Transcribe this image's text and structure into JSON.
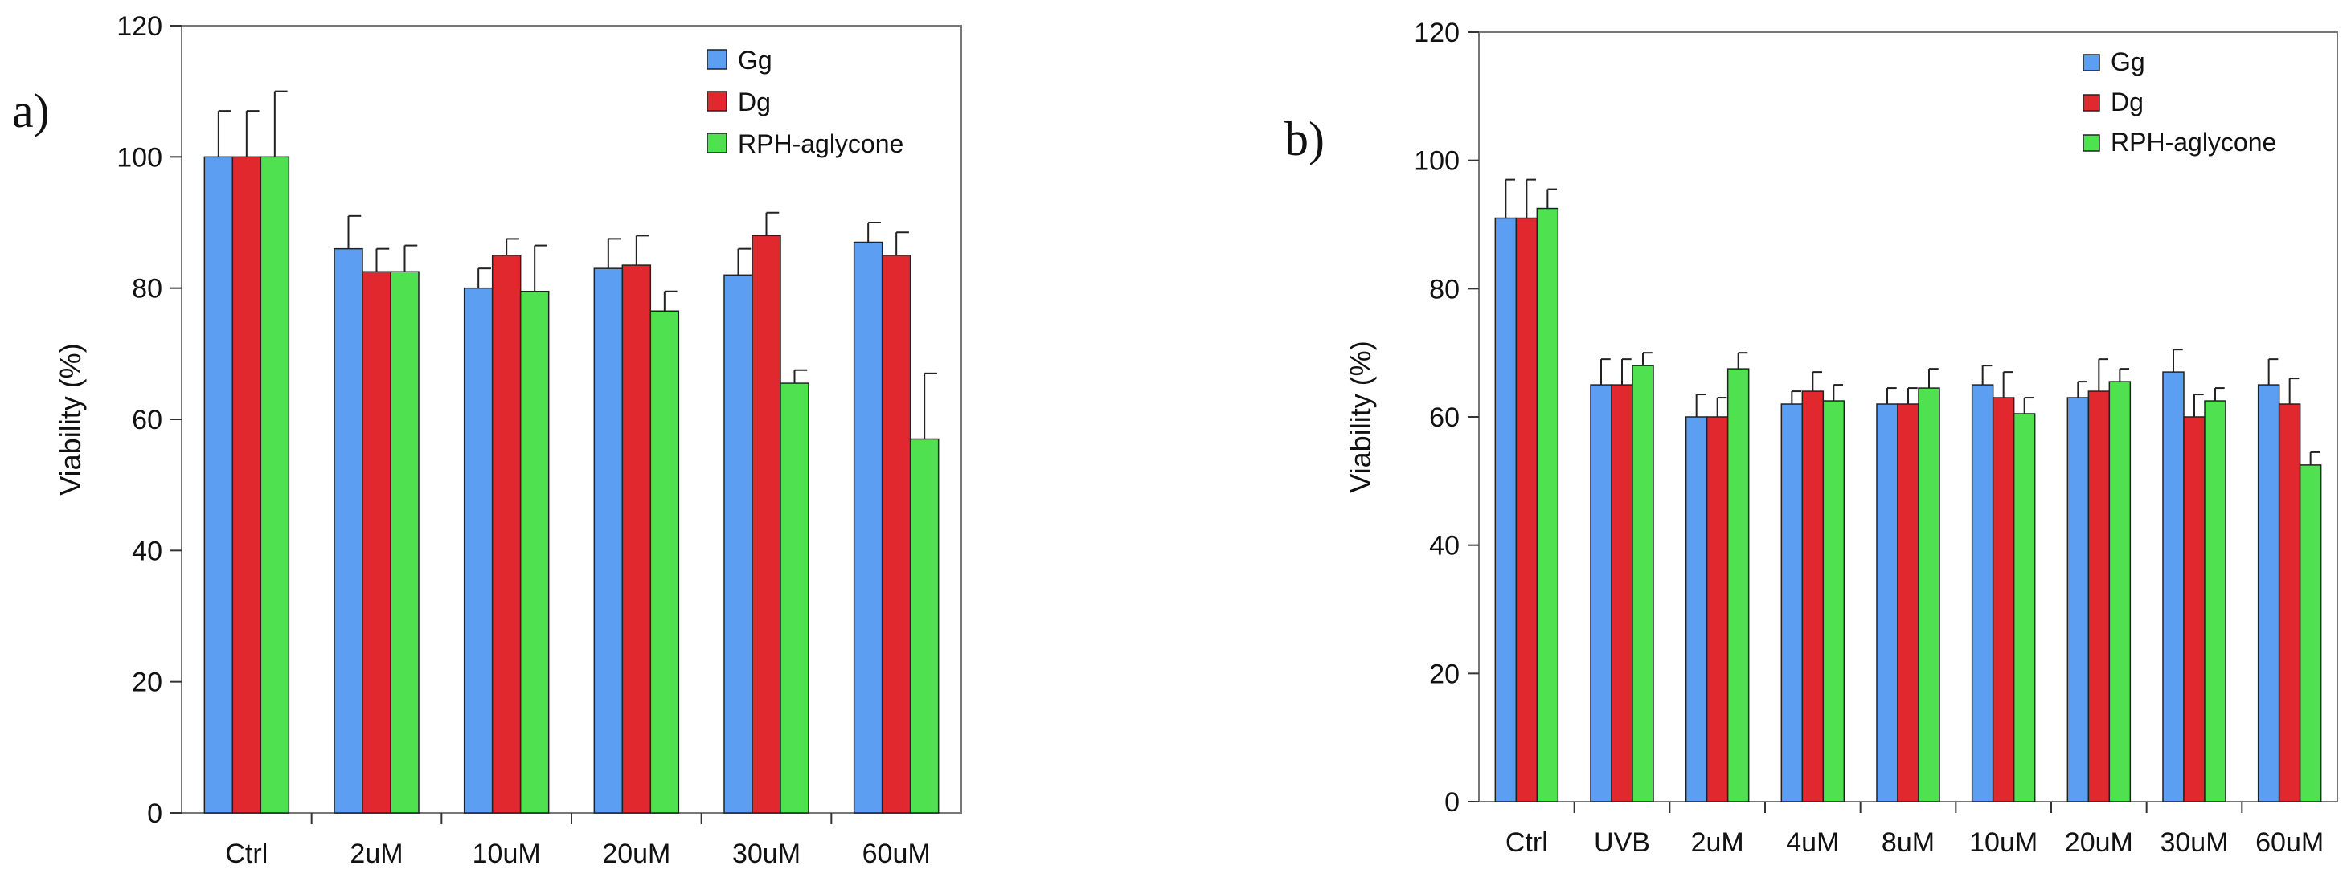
{
  "colors": {
    "Gg": "#5c9ef2",
    "Dg": "#e0282e",
    "RPH-aglycone": "#4fe150"
  },
  "chart_data": [
    {
      "panel_label": "a)",
      "type": "bar",
      "ylabel": "Viability (%)",
      "xlabel": "",
      "ylim": [
        0,
        120
      ],
      "yticks": [
        0,
        20,
        40,
        60,
        80,
        100,
        120
      ],
      "grid": false,
      "legend_position": "top-right",
      "categories": [
        "Ctrl",
        "2uM",
        "10uM",
        "20uM",
        "30uM",
        "60uM"
      ],
      "series": [
        {
          "name": "Gg",
          "values": [
            100,
            86,
            80,
            83,
            82,
            87
          ],
          "errors": [
            7,
            5,
            3,
            4.5,
            4,
            3
          ]
        },
        {
          "name": "Dg",
          "values": [
            100,
            82.5,
            85,
            83.5,
            88,
            85
          ],
          "errors": [
            7,
            3.5,
            2.5,
            4.5,
            3.5,
            3.5
          ]
        },
        {
          "name": "RPH-aglycone",
          "values": [
            100,
            82.5,
            79.5,
            76.5,
            65.5,
            57
          ],
          "errors": [
            10,
            4,
            7,
            3,
            2,
            10
          ]
        }
      ]
    },
    {
      "panel_label": "b)",
      "type": "bar",
      "ylabel": "Viability (%)",
      "xlabel": "",
      "ylim": [
        0,
        120
      ],
      "yticks": [
        0,
        20,
        40,
        60,
        80,
        100,
        120
      ],
      "grid": false,
      "legend_position": "top-right",
      "categories": [
        "Ctrl",
        "UVB",
        "2uM",
        "4uM",
        "8uM",
        "10uM",
        "20uM",
        "30uM",
        "60uM"
      ],
      "series": [
        {
          "name": "Gg",
          "values": [
            91,
            65,
            60,
            62,
            62,
            65,
            63,
            67,
            65
          ],
          "errors": [
            6,
            4,
            3.5,
            2,
            2.5,
            3,
            2.5,
            3.5,
            4
          ]
        },
        {
          "name": "Dg",
          "values": [
            91,
            65,
            60,
            64,
            62,
            63,
            64,
            60,
            62
          ],
          "errors": [
            6,
            4,
            3,
            3,
            2.5,
            4,
            5,
            3.5,
            4
          ]
        },
        {
          "name": "RPH-aglycone",
          "values": [
            92.5,
            68,
            67.5,
            62.5,
            64.5,
            60.5,
            65.5,
            62.5,
            52.5
          ],
          "errors": [
            3,
            2,
            2.5,
            2.5,
            3,
            2.5,
            2,
            2,
            2
          ]
        }
      ]
    }
  ]
}
